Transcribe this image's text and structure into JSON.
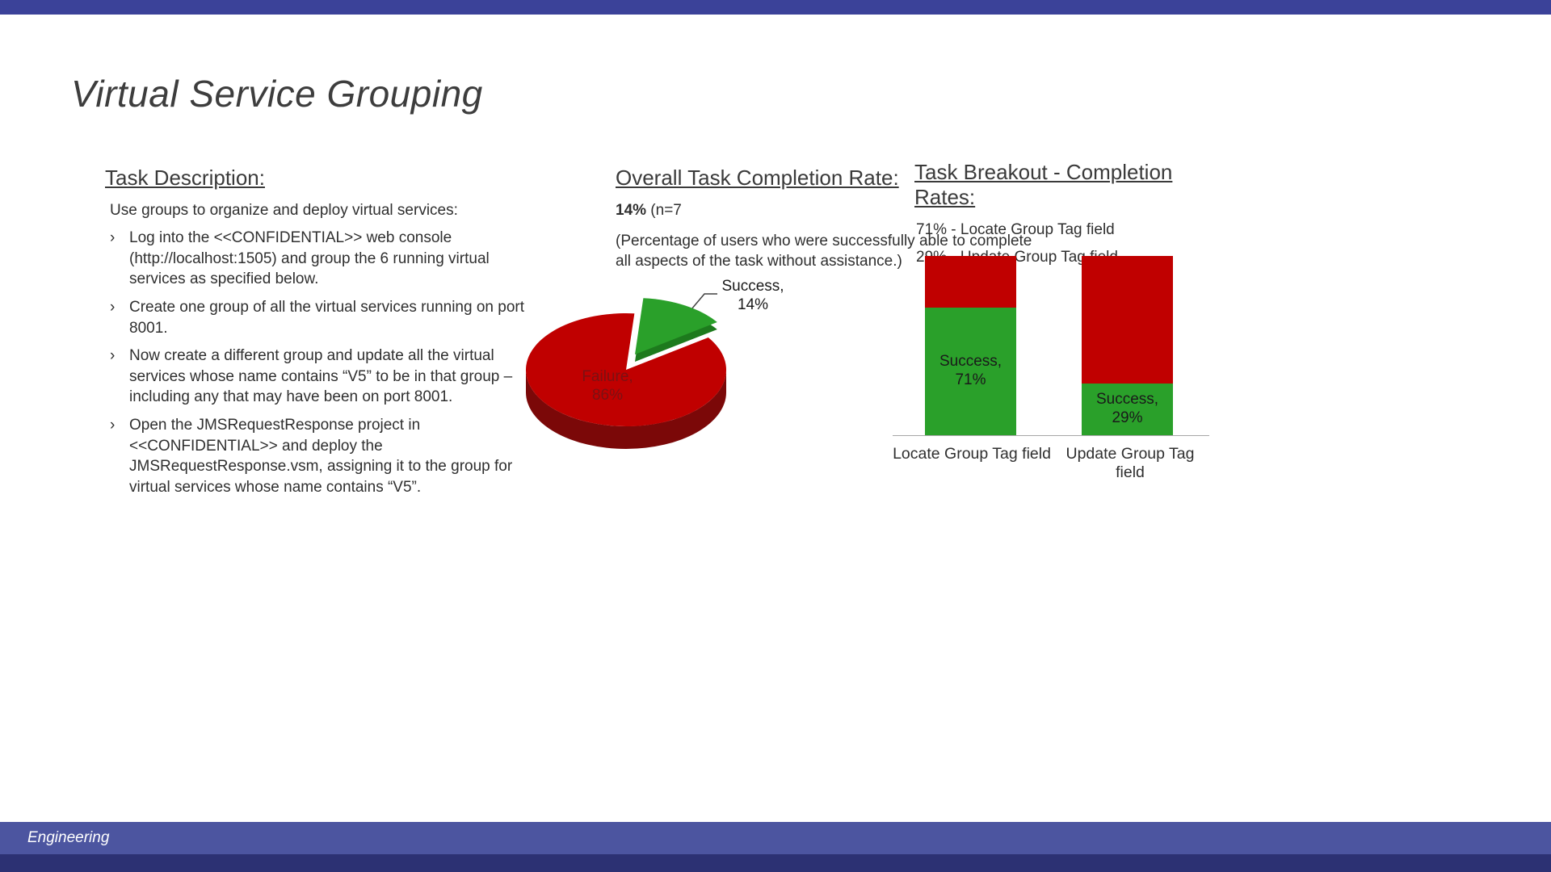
{
  "slide": {
    "title": "Virtual Service Grouping",
    "footer": "Engineering",
    "accent_color": "#4c55a0",
    "accent_dark": "#2c3173",
    "top_bar_color": "#3b4299"
  },
  "task_description": {
    "heading": "Task Description:",
    "intro": "Use groups to organize and deploy virtual services:",
    "bullet_char": "›",
    "bullets": [
      "Log into the <<CONFIDENTIAL>> web console (http://localhost:1505) and group the 6 running virtual services as specified below.",
      "Create one group of all the virtual services running on port 8001.",
      "Now create a different group and update all the virtual services whose name contains “V5” to be in that group – including any that may have been on port 8001.",
      "Open the JMSRequestResponse project in <<CONFIDENTIAL>> and deploy the JMSRequestResponse.vsm, assigning it to the group for virtual services whose name contains “V5”."
    ]
  },
  "completion_rate": {
    "heading": "Overall Task Completion Rate:",
    "stat_value": "14%",
    "stat_suffix": " (n=7",
    "note": "(Percentage of users who were successfully able to complete all aspects of the task without assistance.)"
  },
  "task_breakout": {
    "heading": "Task Breakout - Completion Rates:",
    "lines": [
      "71% - Locate Group Tag field",
      "29% - Update Group Tag field"
    ]
  },
  "chart_data": [
    {
      "type": "pie",
      "style": "3d-exploded",
      "title": "Overall Task Completion Rate",
      "slices": [
        {
          "label": "Success",
          "value": 14,
          "color": "#2aa02a",
          "side_color": "#1d7a1d",
          "exploded": true
        },
        {
          "label": "Failure",
          "value": 86,
          "color": "#c00000",
          "side_color": "#7b0808",
          "exploded": false
        }
      ],
      "success_label": "Success,\n14%",
      "failure_label": "Failure,\n86%"
    },
    {
      "type": "bar",
      "subtype": "stacked-100",
      "categories": [
        "Locate Group Tag field",
        "Update Group Tag field"
      ],
      "series": [
        {
          "name": "Success",
          "values": [
            71,
            29
          ],
          "color": "#2aa02a"
        },
        {
          "name": "Failure",
          "values": [
            29,
            71
          ],
          "color": "#c00000"
        }
      ],
      "bar_labels": [
        "Success,\n71%",
        "Success,\n29%"
      ],
      "ylim": [
        0,
        100
      ],
      "legend": "none",
      "grid": "off"
    }
  ]
}
